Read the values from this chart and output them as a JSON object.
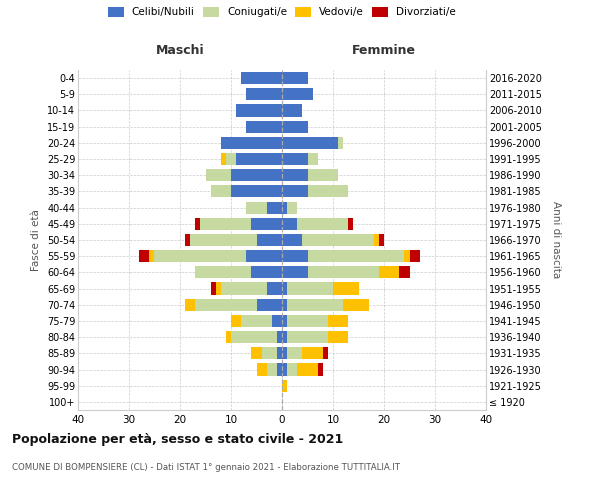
{
  "age_groups": [
    "100+",
    "95-99",
    "90-94",
    "85-89",
    "80-84",
    "75-79",
    "70-74",
    "65-69",
    "60-64",
    "55-59",
    "50-54",
    "45-49",
    "40-44",
    "35-39",
    "30-34",
    "25-29",
    "20-24",
    "15-19",
    "10-14",
    "5-9",
    "0-4"
  ],
  "birth_years": [
    "≤ 1920",
    "1921-1925",
    "1926-1930",
    "1931-1935",
    "1936-1940",
    "1941-1945",
    "1946-1950",
    "1951-1955",
    "1956-1960",
    "1961-1965",
    "1966-1970",
    "1971-1975",
    "1976-1980",
    "1981-1985",
    "1986-1990",
    "1991-1995",
    "1996-2000",
    "2001-2005",
    "2006-2010",
    "2011-2015",
    "2016-2020"
  ],
  "maschi": {
    "celibi": [
      0,
      0,
      1,
      1,
      1,
      2,
      5,
      3,
      6,
      7,
      5,
      6,
      3,
      10,
      10,
      9,
      12,
      7,
      9,
      7,
      8
    ],
    "coniugati": [
      0,
      0,
      2,
      3,
      9,
      6,
      12,
      9,
      11,
      18,
      13,
      10,
      4,
      4,
      5,
      2,
      0,
      0,
      0,
      0,
      0
    ],
    "vedovi": [
      0,
      0,
      2,
      2,
      1,
      2,
      2,
      1,
      0,
      1,
      0,
      0,
      0,
      0,
      0,
      1,
      0,
      0,
      0,
      0,
      0
    ],
    "divorziati": [
      0,
      0,
      0,
      0,
      0,
      0,
      0,
      1,
      0,
      2,
      1,
      1,
      0,
      0,
      0,
      0,
      0,
      0,
      0,
      0,
      0
    ]
  },
  "femmine": {
    "nubili": [
      0,
      0,
      1,
      1,
      1,
      1,
      1,
      1,
      5,
      5,
      4,
      3,
      1,
      5,
      5,
      5,
      11,
      5,
      4,
      6,
      5
    ],
    "coniugate": [
      0,
      0,
      2,
      3,
      8,
      8,
      11,
      9,
      14,
      19,
      14,
      10,
      2,
      8,
      6,
      2,
      1,
      0,
      0,
      0,
      0
    ],
    "vedove": [
      0,
      1,
      4,
      4,
      4,
      4,
      5,
      5,
      4,
      1,
      1,
      0,
      0,
      0,
      0,
      0,
      0,
      0,
      0,
      0,
      0
    ],
    "divorziate": [
      0,
      0,
      1,
      1,
      0,
      0,
      0,
      0,
      2,
      2,
      1,
      1,
      0,
      0,
      0,
      0,
      0,
      0,
      0,
      0,
      0
    ]
  },
  "colors": {
    "celibi_nubili": "#4472c4",
    "coniugati": "#c5d9a0",
    "vedovi": "#ffc000",
    "divorziati": "#c00000"
  },
  "xlim": 40,
  "title": "Popolazione per età, sesso e stato civile - 2021",
  "subtitle": "COMUNE DI BOMPENSIERE (CL) - Dati ISTAT 1° gennaio 2021 - Elaborazione TUTTITALIA.IT",
  "ylabel_left": "Fasce di età",
  "ylabel_right": "Anni di nascita",
  "xlabel_maschi": "Maschi",
  "xlabel_femmine": "Femmine",
  "legend_labels": [
    "Celibi/Nubili",
    "Coniugati/e",
    "Vedovi/e",
    "Divorziati/e"
  ],
  "bg_color": "#ffffff"
}
